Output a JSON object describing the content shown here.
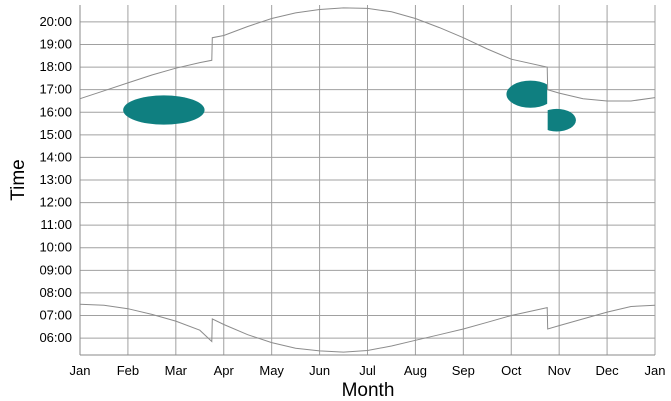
{
  "chart_data": {
    "type": "line",
    "title": "",
    "xlabel": "Month",
    "ylabel": "Time",
    "x_unit": "month (0 = start of Jan, 12 = end of Dec)",
    "y_unit": "hour of day",
    "xlim": [
      0,
      12
    ],
    "ylim": [
      5.25,
      20.75
    ],
    "grid": true,
    "legend": "none",
    "x_tick_labels": [
      "Jan",
      "Feb",
      "Mar",
      "Apr",
      "May",
      "Jun",
      "Jul",
      "Aug",
      "Sep",
      "Oct",
      "Nov",
      "Dec",
      "Jan"
    ],
    "y_tick_labels": [
      "06:00",
      "07:00",
      "08:00",
      "09:00",
      "10:00",
      "11:00",
      "12:00",
      "13:00",
      "14:00",
      "15:00",
      "16:00",
      "17:00",
      "18:00",
      "19:00",
      "20:00"
    ],
    "series": [
      {
        "role": "sunset",
        "color": "#8c8c8c",
        "points": [
          [
            0,
            16.6
          ],
          [
            0.5,
            16.95
          ],
          [
            1,
            17.3
          ],
          [
            1.5,
            17.65
          ],
          [
            2,
            17.95
          ],
          [
            2.5,
            18.2
          ],
          [
            2.75,
            18.3
          ],
          [
            2.76,
            19.3
          ],
          [
            3,
            19.4
          ],
          [
            3.5,
            19.8
          ],
          [
            4,
            20.15
          ],
          [
            4.5,
            20.4
          ],
          [
            5,
            20.55
          ],
          [
            5.5,
            20.62
          ],
          [
            6,
            20.6
          ],
          [
            6.5,
            20.45
          ],
          [
            7,
            20.15
          ],
          [
            7.5,
            19.75
          ],
          [
            8,
            19.3
          ],
          [
            8.5,
            18.8
          ],
          [
            9,
            18.35
          ],
          [
            9.75,
            18.0
          ],
          [
            9.76,
            17.0
          ],
          [
            10,
            16.85
          ],
          [
            10.5,
            16.6
          ],
          [
            11,
            16.5
          ],
          [
            11.5,
            16.5
          ],
          [
            12,
            16.65
          ]
        ]
      },
      {
        "role": "sunrise",
        "color": "#8c8c8c",
        "points": [
          [
            0,
            7.5
          ],
          [
            0.5,
            7.45
          ],
          [
            1,
            7.3
          ],
          [
            1.5,
            7.05
          ],
          [
            2,
            6.75
          ],
          [
            2.5,
            6.35
          ],
          [
            2.75,
            5.85
          ],
          [
            2.76,
            6.85
          ],
          [
            3,
            6.6
          ],
          [
            3.5,
            6.15
          ],
          [
            4,
            5.8
          ],
          [
            4.5,
            5.55
          ],
          [
            5,
            5.43
          ],
          [
            5.5,
            5.38
          ],
          [
            6,
            5.45
          ],
          [
            6.5,
            5.65
          ],
          [
            7,
            5.9
          ],
          [
            7.5,
            6.15
          ],
          [
            8,
            6.4
          ],
          [
            8.5,
            6.7
          ],
          [
            9,
            7.0
          ],
          [
            9.75,
            7.35
          ],
          [
            9.76,
            6.4
          ],
          [
            10,
            6.55
          ],
          [
            10.5,
            6.85
          ],
          [
            11,
            7.15
          ],
          [
            11.5,
            7.4
          ],
          [
            12,
            7.45
          ]
        ]
      }
    ],
    "highlights": {
      "color": "#0f7f80",
      "ellipses": [
        {
          "cx": 1.75,
          "cy": 16.1,
          "rx": 0.85,
          "ry": 0.65
        },
        {
          "cx": 9.4,
          "cy": 16.8,
          "rx": 0.5,
          "ry": 0.6,
          "x_clip_max": 9.75
        },
        {
          "cx": 9.95,
          "cy": 15.65,
          "rx": 0.4,
          "ry": 0.5,
          "x_clip_min": 9.76
        }
      ]
    }
  }
}
